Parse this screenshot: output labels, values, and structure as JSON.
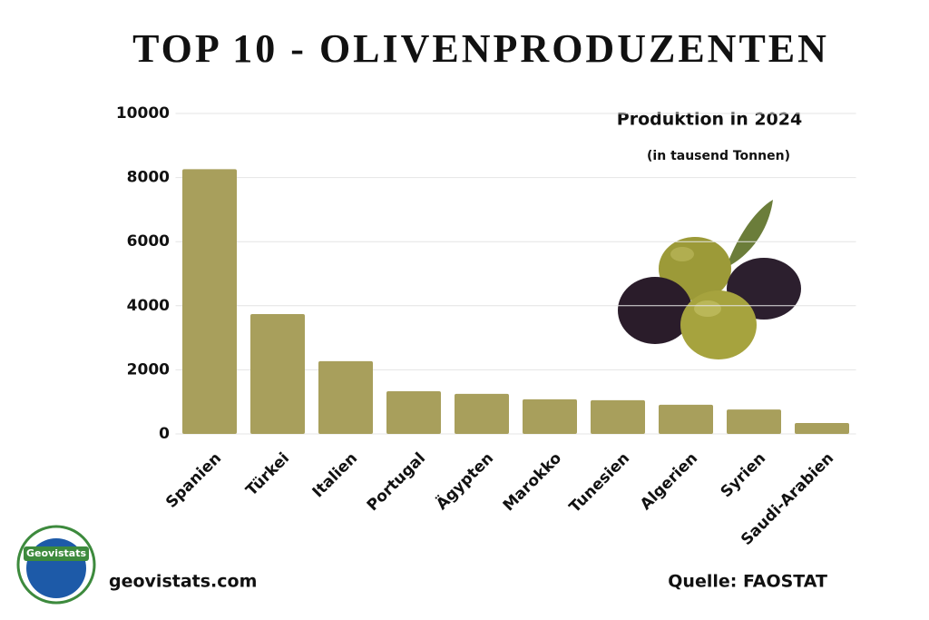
{
  "chart_data": {
    "type": "bar",
    "title": "TOP 10 - OLIVENPRODUZENTEN",
    "subtitle": "Produktion in 2024",
    "unit_note": "(in tausend Tonnen)",
    "categories": [
      "Spanien",
      "Türkei",
      "Italien",
      "Portugal",
      "Ägypten",
      "Marokko",
      "Tunesien",
      "Algerien",
      "Syrien",
      "Saudi-Arabien"
    ],
    "values": [
      8260,
      3740,
      2270,
      1330,
      1250,
      1080,
      1050,
      910,
      760,
      340
    ],
    "color": "#a89f5c",
    "ylim": [
      0,
      10000
    ],
    "yticks": [
      0,
      2000,
      4000,
      6000,
      8000,
      10000
    ],
    "grid": true
  },
  "logo": {
    "label": "Geovistats"
  },
  "footer": {
    "website": "geovistats.com",
    "source": "Quelle: FAOSTAT"
  }
}
